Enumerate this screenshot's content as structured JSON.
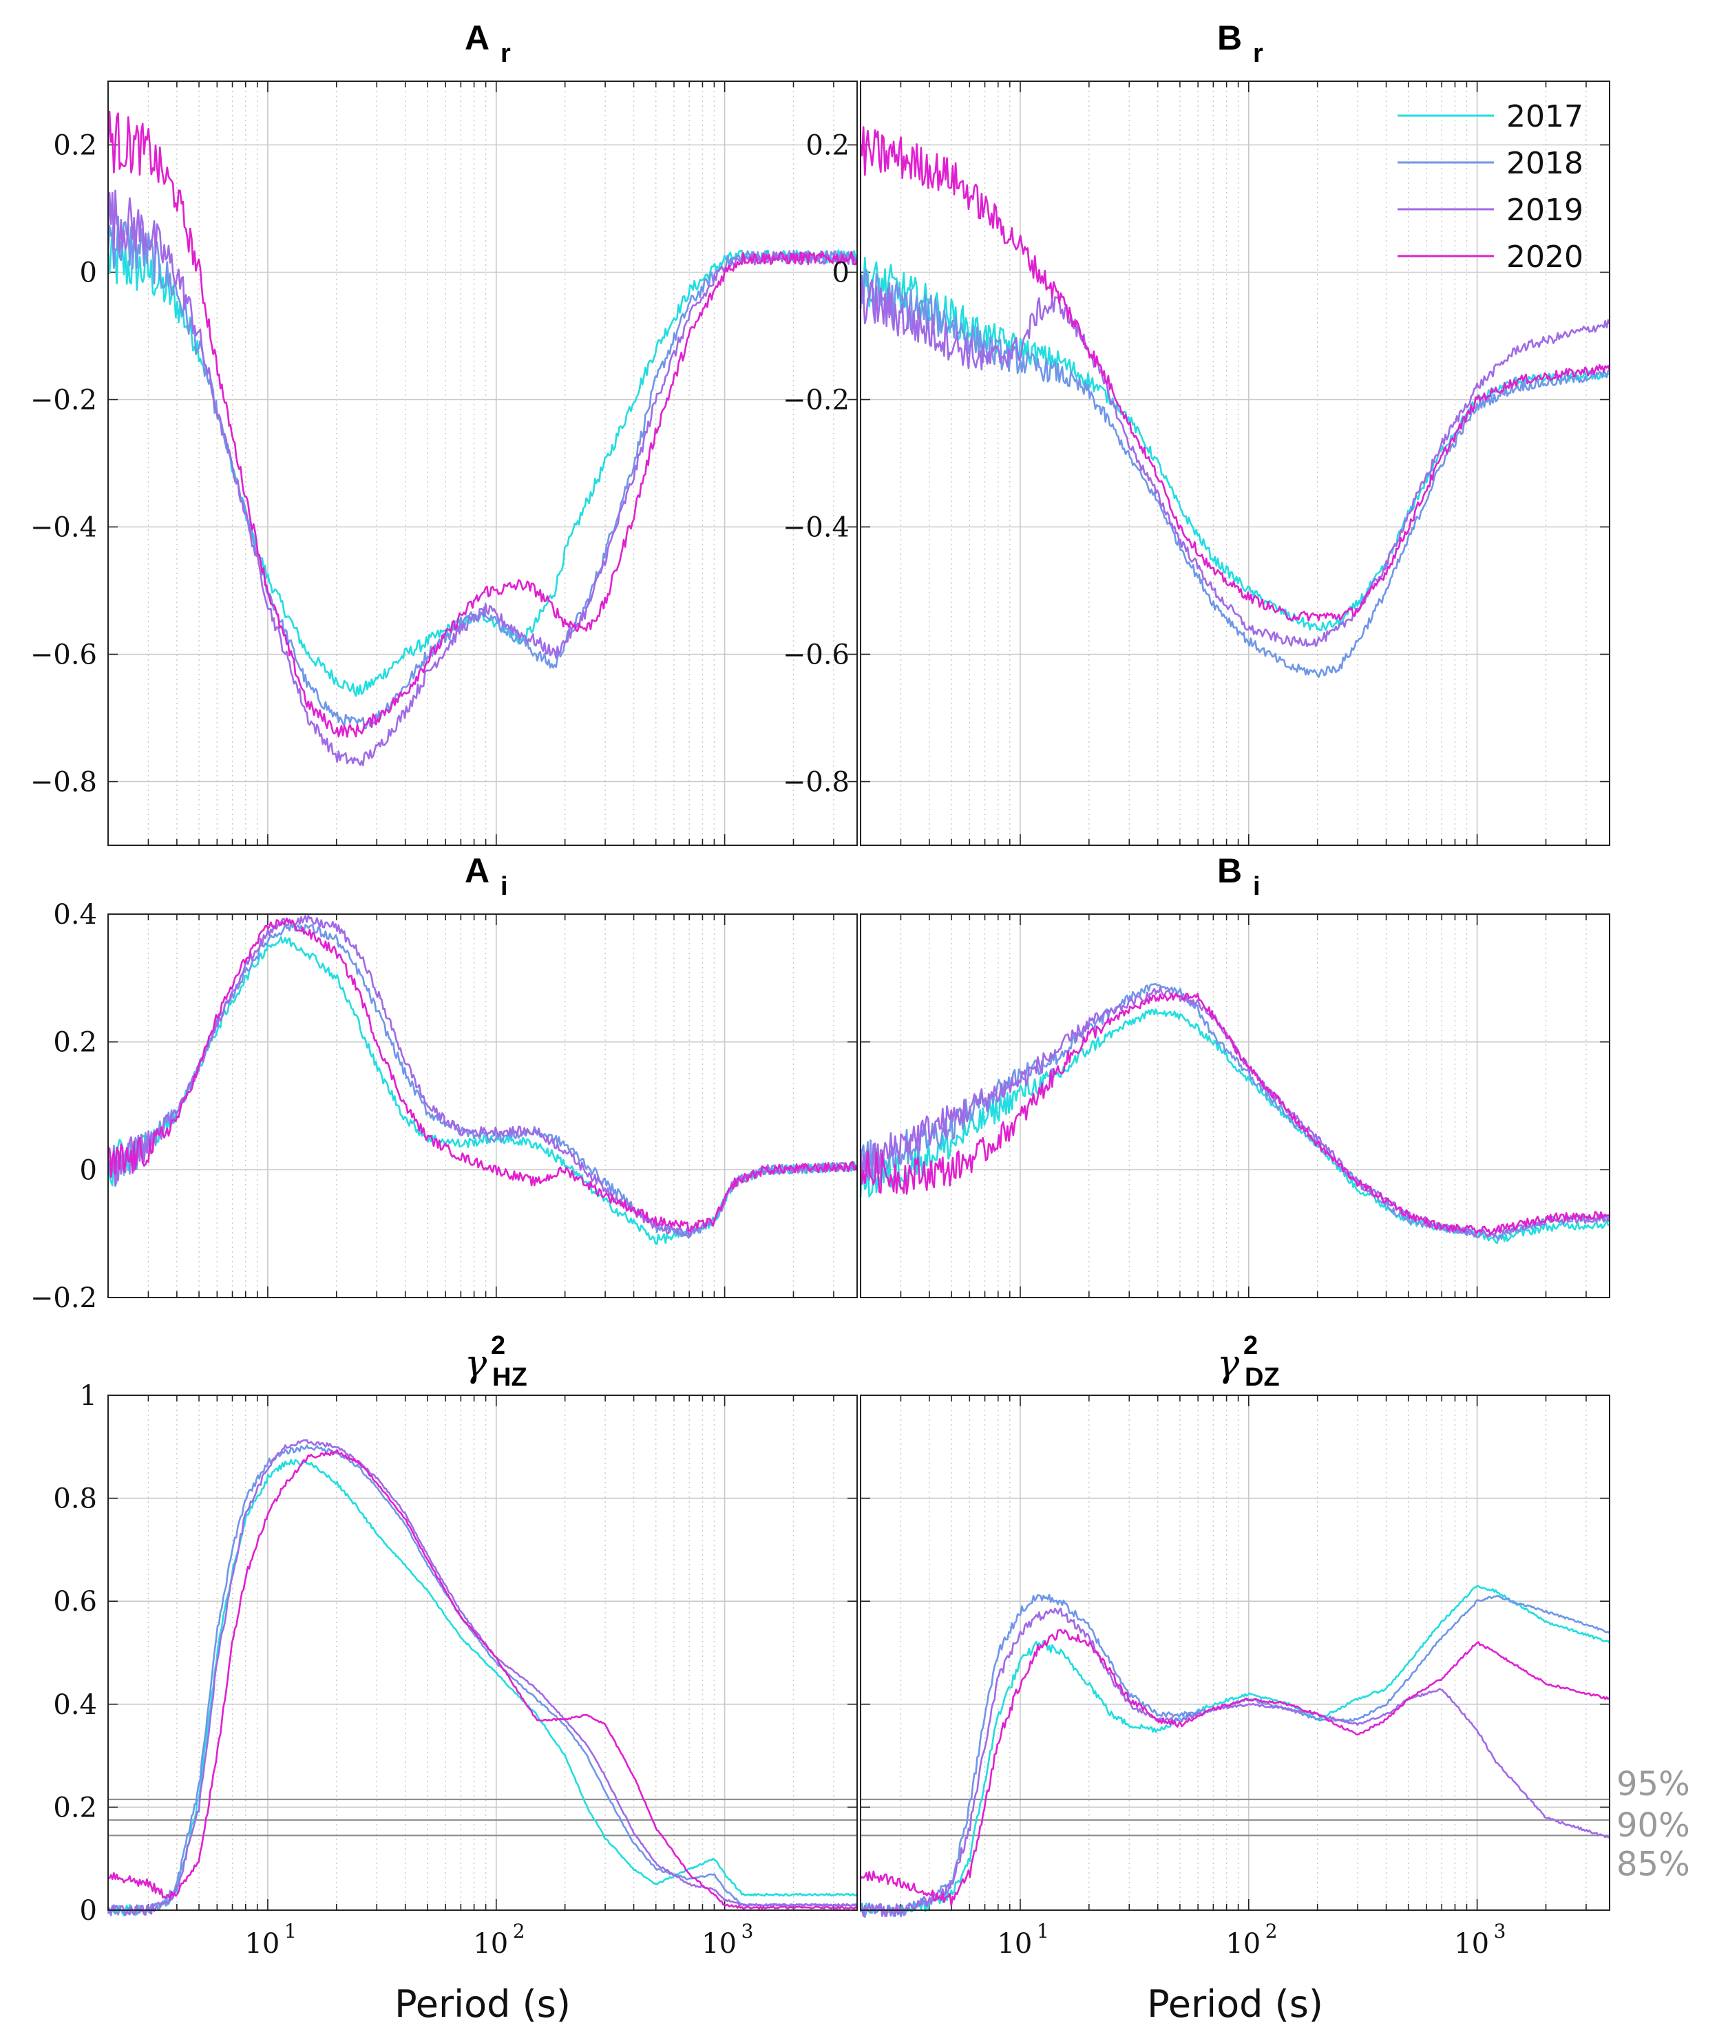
{
  "colors": {
    "2017": "#22dde0",
    "2018": "#6f96e8",
    "2019": "#a06ae6",
    "2020": "#e020d0",
    "grid": "#c9c9c9",
    "threshold": "#8a8a8a",
    "threshold_text": "#9a9a9a"
  },
  "legend": [
    "2017",
    "2018",
    "2019",
    "2020"
  ],
  "xlabel": "Period (s)",
  "xticks": [
    {
      "base": "10",
      "exp": "1",
      "value": 10
    },
    {
      "base": "10",
      "exp": "2",
      "value": 100
    },
    {
      "base": "10",
      "exp": "3",
      "value": 1000
    }
  ],
  "significance": [
    {
      "label": "95%",
      "value": 0.215
    },
    {
      "label": "90%",
      "value": 0.175
    },
    {
      "label": "85%",
      "value": 0.145
    }
  ],
  "chart_data": [
    {
      "id": "Ar",
      "type": "line",
      "title": "A",
      "subscript": "r",
      "title_style": "bold",
      "xscale": "log",
      "xlim": [
        2,
        3800
      ],
      "ylim": [
        -0.9,
        0.3
      ],
      "yticks": [
        0.2,
        0,
        -0.2,
        -0.4,
        -0.6,
        -0.8
      ],
      "ytick_labels": [
        "0.2",
        "0",
        "−0.2",
        "−0.4",
        "−0.6",
        "−0.8"
      ],
      "noise_amp": 0.04,
      "noise_until": 6,
      "x": [
        2,
        3,
        4,
        5,
        6,
        8,
        10,
        15,
        20,
        25,
        30,
        40,
        50,
        70,
        90,
        100,
        130,
        150,
        180,
        200,
        250,
        300,
        400,
        500,
        700,
        1000,
        1200,
        2000,
        3800
      ],
      "series": [
        {
          "name": "2017",
          "values": [
            0.02,
            0.0,
            -0.05,
            -0.12,
            -0.22,
            -0.38,
            -0.48,
            -0.6,
            -0.64,
            -0.66,
            -0.64,
            -0.6,
            -0.58,
            -0.55,
            -0.54,
            -0.55,
            -0.58,
            -0.55,
            -0.5,
            -0.44,
            -0.36,
            -0.3,
            -0.2,
            -0.12,
            -0.03,
            0.02,
            0.025,
            0.025,
            0.025
          ]
        },
        {
          "name": "2018",
          "values": [
            0.06,
            0.03,
            -0.03,
            -0.12,
            -0.22,
            -0.38,
            -0.5,
            -0.65,
            -0.7,
            -0.71,
            -0.7,
            -0.65,
            -0.6,
            -0.55,
            -0.53,
            -0.55,
            -0.58,
            -0.6,
            -0.62,
            -0.58,
            -0.52,
            -0.44,
            -0.3,
            -0.17,
            -0.05,
            0.015,
            0.025,
            0.025,
            0.025
          ]
        },
        {
          "name": "2019",
          "values": [
            0.09,
            0.06,
            0.0,
            -0.1,
            -0.22,
            -0.38,
            -0.52,
            -0.7,
            -0.76,
            -0.77,
            -0.75,
            -0.69,
            -0.63,
            -0.56,
            -0.53,
            -0.54,
            -0.57,
            -0.58,
            -0.6,
            -0.58,
            -0.53,
            -0.45,
            -0.32,
            -0.2,
            -0.07,
            0.01,
            0.022,
            0.022,
            0.022
          ]
        },
        {
          "name": "2020",
          "values": [
            0.21,
            0.19,
            0.12,
            0.0,
            -0.15,
            -0.35,
            -0.5,
            -0.68,
            -0.72,
            -0.72,
            -0.7,
            -0.66,
            -0.61,
            -0.54,
            -0.5,
            -0.5,
            -0.49,
            -0.5,
            -0.53,
            -0.55,
            -0.56,
            -0.52,
            -0.38,
            -0.25,
            -0.1,
            0.0,
            0.022,
            0.022,
            0.022
          ]
        }
      ]
    },
    {
      "id": "Br",
      "type": "line",
      "title": "B",
      "subscript": "r",
      "title_style": "bold",
      "xscale": "log",
      "xlim": [
        2,
        3800
      ],
      "ylim": [
        -0.9,
        0.3
      ],
      "yticks": [
        0.2,
        0,
        -0.2,
        -0.4,
        -0.6,
        -0.8
      ],
      "ytick_labels": [
        "0.2",
        "0",
        "−0.2",
        "−0.4",
        "−0.6",
        "−0.8"
      ],
      "noise_amp": 0.03,
      "noise_until": 25,
      "show_legend": true,
      "x": [
        2,
        3,
        5,
        7,
        10,
        12,
        15,
        20,
        25,
        30,
        40,
        50,
        70,
        100,
        150,
        200,
        250,
        300,
        400,
        500,
        700,
        1000,
        1500,
        3800
      ],
      "series": [
        {
          "name": "2017",
          "values": [
            -0.01,
            -0.03,
            -0.07,
            -0.1,
            -0.12,
            -0.13,
            -0.14,
            -0.17,
            -0.2,
            -0.23,
            -0.3,
            -0.37,
            -0.45,
            -0.5,
            -0.54,
            -0.56,
            -0.55,
            -0.52,
            -0.46,
            -0.38,
            -0.28,
            -0.2,
            -0.17,
            -0.16
          ]
        },
        {
          "name": "2018",
          "values": [
            -0.03,
            -0.05,
            -0.08,
            -0.12,
            -0.14,
            -0.15,
            -0.16,
            -0.19,
            -0.24,
            -0.29,
            -0.36,
            -0.43,
            -0.52,
            -0.58,
            -0.62,
            -0.63,
            -0.62,
            -0.58,
            -0.5,
            -0.42,
            -0.3,
            -0.21,
            -0.18,
            -0.16
          ]
        },
        {
          "name": "2019",
          "values": [
            -0.04,
            -0.07,
            -0.11,
            -0.14,
            -0.12,
            -0.06,
            -0.05,
            -0.12,
            -0.2,
            -0.27,
            -0.35,
            -0.42,
            -0.5,
            -0.56,
            -0.58,
            -0.58,
            -0.56,
            -0.53,
            -0.46,
            -0.38,
            -0.27,
            -0.18,
            -0.12,
            -0.08
          ]
        },
        {
          "name": "2020",
          "values": [
            0.19,
            0.18,
            0.15,
            0.1,
            0.04,
            0.0,
            -0.04,
            -0.12,
            -0.18,
            -0.24,
            -0.32,
            -0.4,
            -0.47,
            -0.51,
            -0.54,
            -0.54,
            -0.54,
            -0.53,
            -0.47,
            -0.4,
            -0.29,
            -0.2,
            -0.17,
            -0.15
          ]
        }
      ]
    },
    {
      "id": "Ai",
      "type": "line",
      "title": "A",
      "subscript": "i",
      "title_style": "bold",
      "xscale": "log",
      "xlim": [
        2,
        3800
      ],
      "ylim": [
        -0.2,
        0.4
      ],
      "yticks": [
        0.4,
        0.2,
        0,
        -0.2
      ],
      "ytick_labels": [
        "0.4",
        "0.2",
        "0",
        "−0.2"
      ],
      "noise_amp": 0.03,
      "noise_until": 4,
      "x": [
        2,
        3,
        4,
        5,
        6,
        8,
        10,
        12,
        15,
        20,
        25,
        30,
        40,
        50,
        70,
        100,
        150,
        200,
        300,
        500,
        700,
        900,
        1100,
        1500,
        3800
      ],
      "series": [
        {
          "name": "2017",
          "values": [
            0.0,
            0.04,
            0.09,
            0.16,
            0.22,
            0.3,
            0.35,
            0.36,
            0.34,
            0.3,
            0.23,
            0.16,
            0.08,
            0.05,
            0.04,
            0.05,
            0.04,
            0.01,
            -0.05,
            -0.11,
            -0.1,
            -0.08,
            -0.02,
            0.0,
            0.005
          ]
        },
        {
          "name": "2018",
          "values": [
            0.0,
            0.04,
            0.09,
            0.16,
            0.23,
            0.31,
            0.36,
            0.38,
            0.38,
            0.36,
            0.31,
            0.25,
            0.15,
            0.09,
            0.06,
            0.05,
            0.06,
            0.04,
            -0.02,
            -0.09,
            -0.1,
            -0.08,
            -0.02,
            0.0,
            0.005
          ]
        },
        {
          "name": "2019",
          "values": [
            0.0,
            0.04,
            0.09,
            0.16,
            0.23,
            0.32,
            0.37,
            0.39,
            0.39,
            0.38,
            0.34,
            0.28,
            0.17,
            0.1,
            0.06,
            0.06,
            0.06,
            0.03,
            -0.03,
            -0.09,
            -0.1,
            -0.08,
            -0.02,
            0.0,
            0.005
          ]
        },
        {
          "name": "2020",
          "values": [
            0.0,
            0.03,
            0.08,
            0.16,
            0.24,
            0.33,
            0.38,
            0.39,
            0.37,
            0.34,
            0.28,
            0.2,
            0.1,
            0.05,
            0.02,
            0.0,
            -0.02,
            0.0,
            -0.04,
            -0.08,
            -0.09,
            -0.08,
            -0.02,
            0.0,
            0.005
          ]
        }
      ]
    },
    {
      "id": "Bi",
      "type": "line",
      "title": "B",
      "subscript": "i",
      "title_style": "bold",
      "xscale": "log",
      "xlim": [
        2,
        3800
      ],
      "ylim": [
        -0.2,
        0.4
      ],
      "yticks": [
        0.4,
        0.2,
        0,
        -0.2
      ],
      "ytick_labels": [
        "",
        "",
        "",
        ""
      ],
      "noise_amp": 0.025,
      "noise_until": 25,
      "x": [
        2,
        3,
        5,
        7,
        10,
        15,
        20,
        30,
        40,
        50,
        60,
        70,
        100,
        150,
        200,
        300,
        500,
        700,
        1000,
        1200,
        2000,
        3800
      ],
      "series": [
        {
          "name": "2017",
          "values": [
            -0.02,
            0.0,
            0.04,
            0.08,
            0.12,
            0.15,
            0.19,
            0.23,
            0.25,
            0.24,
            0.22,
            0.2,
            0.14,
            0.08,
            0.04,
            -0.03,
            -0.08,
            -0.09,
            -0.1,
            -0.11,
            -0.09,
            -0.085
          ]
        },
        {
          "name": "2018",
          "values": [
            0.01,
            0.03,
            0.07,
            0.11,
            0.15,
            0.18,
            0.22,
            0.27,
            0.29,
            0.28,
            0.25,
            0.21,
            0.15,
            0.08,
            0.04,
            -0.02,
            -0.08,
            -0.09,
            -0.1,
            -0.105,
            -0.08,
            -0.075
          ]
        },
        {
          "name": "2019",
          "values": [
            0.0,
            0.04,
            0.08,
            0.11,
            0.14,
            0.19,
            0.23,
            0.26,
            0.28,
            0.27,
            0.26,
            0.24,
            0.16,
            0.09,
            0.05,
            -0.02,
            -0.07,
            -0.09,
            -0.1,
            -0.1,
            -0.08,
            -0.075
          ]
        },
        {
          "name": "2020",
          "values": [
            0.0,
            -0.01,
            0.0,
            0.03,
            0.08,
            0.16,
            0.21,
            0.25,
            0.27,
            0.27,
            0.27,
            0.24,
            0.16,
            0.09,
            0.04,
            -0.02,
            -0.07,
            -0.09,
            -0.095,
            -0.095,
            -0.075,
            -0.07
          ]
        }
      ]
    },
    {
      "id": "gHZ",
      "type": "line",
      "title": "γ",
      "superscript": "2",
      "subscript": "HZ",
      "title_style": "greek",
      "xscale": "log",
      "xlim": [
        2,
        3800
      ],
      "ylim": [
        0,
        1
      ],
      "yticks": [
        1,
        0.8,
        0.6,
        0.4,
        0.2,
        0
      ],
      "ytick_labels": [
        "1",
        "0.8",
        "0.6",
        "0.4",
        "0.2",
        "0"
      ],
      "noise_amp": 0.008,
      "noise_until": 30,
      "show_significance": true,
      "x": [
        2,
        3,
        3.5,
        4,
        5,
        6,
        7,
        8,
        10,
        12,
        15,
        20,
        25,
        30,
        40,
        50,
        70,
        100,
        150,
        200,
        250,
        300,
        400,
        500,
        700,
        900,
        1000,
        1200,
        3800
      ],
      "series": [
        {
          "name": "2017",
          "values": [
            0.0,
            0.0,
            0.01,
            0.04,
            0.22,
            0.5,
            0.66,
            0.76,
            0.84,
            0.87,
            0.87,
            0.83,
            0.78,
            0.73,
            0.67,
            0.62,
            0.53,
            0.46,
            0.38,
            0.3,
            0.2,
            0.14,
            0.08,
            0.05,
            0.08,
            0.1,
            0.07,
            0.03,
            0.03
          ]
        },
        {
          "name": "2018",
          "values": [
            0.0,
            0.0,
            0.01,
            0.05,
            0.24,
            0.54,
            0.7,
            0.8,
            0.87,
            0.89,
            0.9,
            0.89,
            0.86,
            0.82,
            0.75,
            0.67,
            0.57,
            0.48,
            0.41,
            0.36,
            0.3,
            0.23,
            0.13,
            0.08,
            0.06,
            0.07,
            0.04,
            0.01,
            0.01
          ]
        },
        {
          "name": "2019",
          "values": [
            0.0,
            0.0,
            0.01,
            0.04,
            0.2,
            0.48,
            0.65,
            0.77,
            0.86,
            0.9,
            0.91,
            0.9,
            0.87,
            0.84,
            0.77,
            0.69,
            0.58,
            0.49,
            0.43,
            0.37,
            0.32,
            0.26,
            0.15,
            0.09,
            0.05,
            0.04,
            0.02,
            0.01,
            0.01
          ]
        },
        {
          "name": "2020",
          "values": [
            0.07,
            0.05,
            0.03,
            0.03,
            0.1,
            0.3,
            0.52,
            0.65,
            0.77,
            0.83,
            0.88,
            0.89,
            0.87,
            0.83,
            0.76,
            0.68,
            0.57,
            0.49,
            0.37,
            0.37,
            0.38,
            0.36,
            0.26,
            0.16,
            0.07,
            0.03,
            0.01,
            0.005,
            0.005
          ]
        }
      ]
    },
    {
      "id": "gDZ",
      "type": "line",
      "title": "γ",
      "superscript": "2",
      "subscript": "DZ",
      "title_style": "greek",
      "xscale": "log",
      "xlim": [
        2,
        3800
      ],
      "ylim": [
        0,
        1
      ],
      "yticks": [
        1,
        0.8,
        0.6,
        0.4,
        0.2,
        0
      ],
      "ytick_labels": [
        "",
        "",
        "",
        "",
        "",
        ""
      ],
      "noise_amp": 0.01,
      "noise_until": 80,
      "show_significance": true,
      "x": [
        2,
        3,
        4,
        5,
        6,
        7,
        8,
        10,
        12,
        15,
        20,
        25,
        30,
        40,
        50,
        70,
        100,
        150,
        200,
        300,
        400,
        500,
        700,
        1000,
        1200,
        2000,
        3800
      ],
      "series": [
        {
          "name": "2017",
          "values": [
            0.0,
            0.0,
            0.01,
            0.03,
            0.1,
            0.25,
            0.38,
            0.48,
            0.52,
            0.5,
            0.44,
            0.38,
            0.36,
            0.35,
            0.37,
            0.4,
            0.42,
            0.4,
            0.37,
            0.41,
            0.43,
            0.48,
            0.56,
            0.63,
            0.62,
            0.56,
            0.52
          ]
        },
        {
          "name": "2018",
          "values": [
            0.0,
            0.0,
            0.02,
            0.05,
            0.2,
            0.38,
            0.5,
            0.58,
            0.61,
            0.6,
            0.55,
            0.48,
            0.42,
            0.38,
            0.38,
            0.39,
            0.41,
            0.39,
            0.37,
            0.37,
            0.4,
            0.45,
            0.53,
            0.6,
            0.61,
            0.58,
            0.54
          ]
        },
        {
          "name": "2019",
          "values": [
            0.0,
            0.0,
            0.02,
            0.05,
            0.16,
            0.32,
            0.45,
            0.54,
            0.57,
            0.58,
            0.53,
            0.45,
            0.4,
            0.37,
            0.37,
            0.39,
            0.4,
            0.39,
            0.38,
            0.36,
            0.38,
            0.41,
            0.43,
            0.35,
            0.29,
            0.18,
            0.14
          ]
        },
        {
          "name": "2020",
          "values": [
            0.07,
            0.05,
            0.03,
            0.02,
            0.07,
            0.2,
            0.33,
            0.44,
            0.51,
            0.54,
            0.52,
            0.46,
            0.41,
            0.37,
            0.36,
            0.39,
            0.41,
            0.4,
            0.38,
            0.34,
            0.37,
            0.41,
            0.45,
            0.52,
            0.5,
            0.44,
            0.41
          ]
        }
      ]
    }
  ]
}
